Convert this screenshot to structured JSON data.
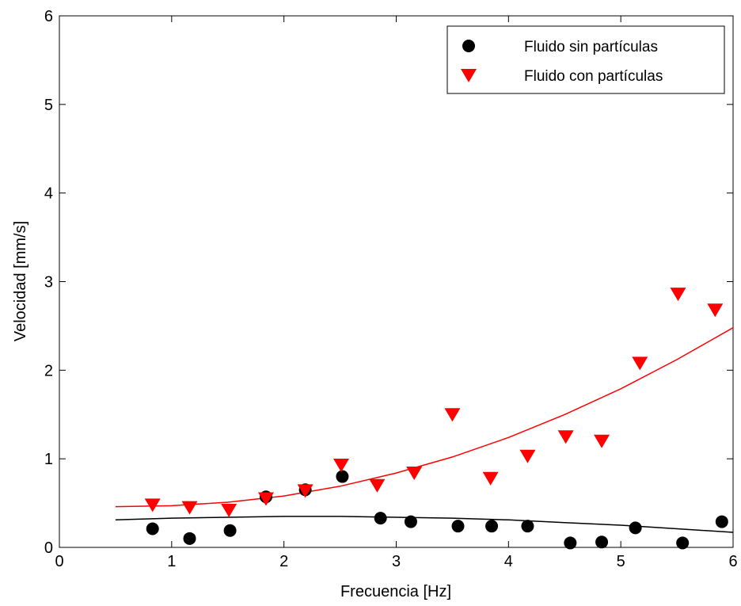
{
  "chart_data": {
    "type": "scatter",
    "xlabel": "Frecuencia [Hz]",
    "ylabel": "Velocidad [mm/s]",
    "xlim": [
      0,
      6
    ],
    "ylim": [
      0,
      6
    ],
    "xticks": [
      "0",
      "1",
      "2",
      "3",
      "4",
      "5",
      "6"
    ],
    "yticks": [
      "0",
      "1",
      "2",
      "3",
      "4",
      "5",
      "6"
    ],
    "grid": false,
    "legend_position": "top-right",
    "series": [
      {
        "name": "Fluido sin partículas",
        "marker": "circle",
        "color": "#000000",
        "x": [
          0.83,
          1.16,
          1.52,
          1.84,
          2.19,
          2.52,
          2.86,
          3.13,
          3.55,
          3.85,
          4.17,
          4.55,
          4.83,
          5.13,
          5.55,
          5.9
        ],
        "y": [
          0.21,
          0.1,
          0.19,
          0.57,
          0.65,
          0.8,
          0.33,
          0.29,
          0.24,
          0.24,
          0.24,
          0.05,
          0.06,
          0.22,
          0.05,
          0.29
        ],
        "fit": {
          "x": [
            0.5,
            1,
            1.5,
            2,
            2.5,
            3,
            3.5,
            4,
            4.5,
            5,
            5.5,
            6
          ],
          "y": [
            0.31,
            0.33,
            0.34,
            0.35,
            0.35,
            0.34,
            0.33,
            0.31,
            0.28,
            0.25,
            0.21,
            0.17
          ]
        }
      },
      {
        "name": "Fluido con partículas",
        "marker": "triangle-down",
        "color": "#ff0000",
        "x": [
          0.83,
          1.16,
          1.51,
          1.84,
          2.19,
          2.51,
          2.83,
          3.16,
          3.5,
          3.84,
          4.17,
          4.51,
          4.83,
          5.17,
          5.51,
          5.84
        ],
        "y": [
          0.48,
          0.45,
          0.42,
          0.55,
          0.64,
          0.93,
          0.7,
          0.84,
          1.5,
          0.78,
          1.03,
          1.25,
          1.2,
          2.08,
          2.86,
          2.68
        ],
        "fit": {
          "x": [
            0.5,
            1,
            1.5,
            2,
            2.5,
            3,
            3.5,
            4,
            4.5,
            5,
            5.5,
            6
          ],
          "y": [
            0.46,
            0.47,
            0.51,
            0.58,
            0.69,
            0.84,
            1.02,
            1.24,
            1.5,
            1.79,
            2.12,
            2.48
          ]
        }
      }
    ]
  }
}
